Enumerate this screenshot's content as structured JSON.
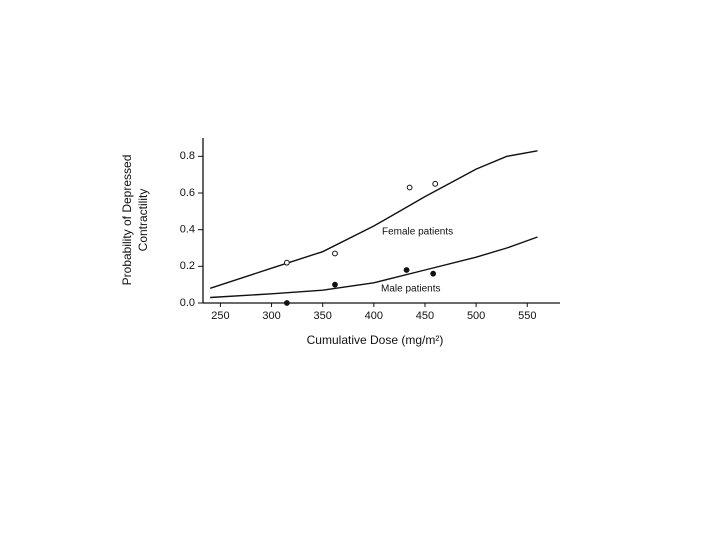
{
  "chart_data": {
    "type": "line",
    "x_label": "Cumulative Dose (mg/m²)",
    "y_label": [
      "Probability of Depressed",
      "Contractility"
    ],
    "xlim": [
      233,
      582
    ],
    "ylim": [
      0,
      0.9
    ],
    "xticks": [
      250,
      300,
      350,
      400,
      450,
      500,
      550
    ],
    "yticks": [
      {
        "value": 0,
        "label": "0.0"
      },
      0.2,
      0.4,
      0.6,
      0.8
    ],
    "color": "#111111",
    "series": [
      {
        "name": "Female patients",
        "x": [
          240,
          300,
          350,
          400,
          450,
          500,
          530,
          560
        ],
        "values": [
          0.08,
          0.19,
          0.28,
          0.42,
          0.58,
          0.73,
          0.8,
          0.83
        ]
      },
      {
        "name": "Male patients",
        "x": [
          240,
          300,
          350,
          400,
          450,
          500,
          530,
          560
        ],
        "values": [
          0.03,
          0.05,
          0.07,
          0.11,
          0.18,
          0.25,
          0.3,
          0.36
        ]
      }
    ],
    "points": [
      {
        "marker": "open",
        "x": [
          315,
          362,
          435,
          460
        ],
        "values": [
          0.22,
          0.27,
          0.63,
          0.65
        ]
      },
      {
        "marker": "filled",
        "x": [
          315,
          362,
          432,
          458
        ],
        "values": [
          0.0,
          0.1,
          0.18,
          0.16
        ]
      }
    ]
  }
}
